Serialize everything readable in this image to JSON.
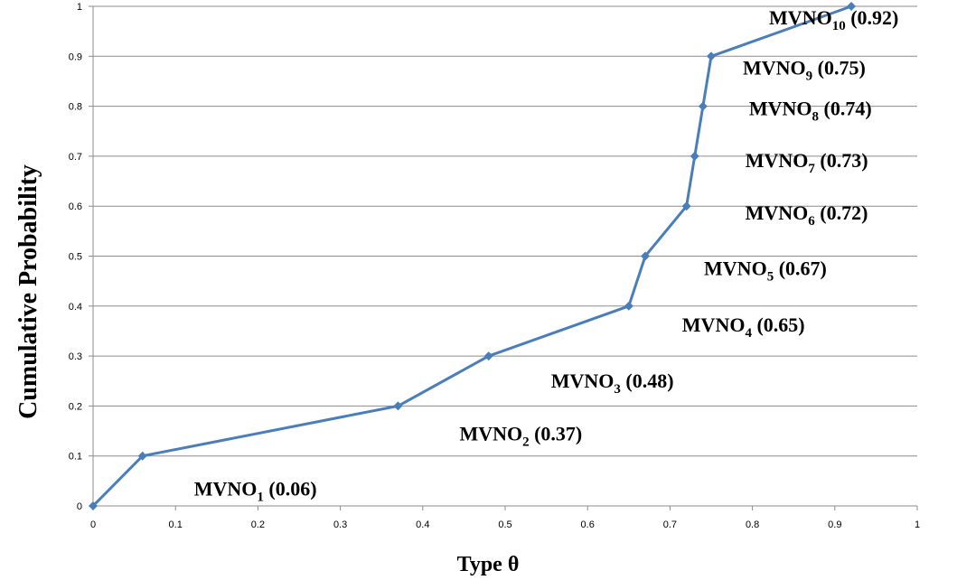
{
  "chart_data": {
    "type": "line",
    "title": "",
    "xlabel": "Type θ",
    "ylabel": "Cumulative Probability",
    "xlim": [
      0,
      1
    ],
    "ylim": [
      0,
      1
    ],
    "xticks": [
      "0",
      "0.1",
      "0.2",
      "0.3",
      "0.4",
      "0.5",
      "0.6",
      "0.7",
      "0.8",
      "0.9",
      "1"
    ],
    "yticks": [
      "0",
      "0.1",
      "0.2",
      "0.3",
      "0.4",
      "0.5",
      "0.6",
      "0.7",
      "0.8",
      "0.9",
      "1"
    ],
    "grid": "horizontal",
    "legend": "none",
    "line_color": "#4a7ebb",
    "series": [
      {
        "x": [
          0,
          0.06,
          0.37,
          0.48,
          0.65,
          0.67,
          0.72,
          0.73,
          0.74,
          0.75,
          0.92
        ],
        "y": [
          0,
          0.1,
          0.2,
          0.3,
          0.4,
          0.5,
          0.6,
          0.7,
          0.8,
          0.9,
          1.0
        ]
      }
    ],
    "annotations": [
      {
        "base": "MVNO",
        "sub": "1",
        "value": "(0.06)"
      },
      {
        "base": "MVNO",
        "sub": "2",
        "value": "(0.37)"
      },
      {
        "base": "MVNO",
        "sub": "3",
        "value": "(0.48)"
      },
      {
        "base": "MVNO",
        "sub": "4",
        "value": "(0.65)"
      },
      {
        "base": "MVNO",
        "sub": "5",
        "value": "(0.67)"
      },
      {
        "base": "MVNO",
        "sub": "6",
        "value": "(0.72)"
      },
      {
        "base": "MVNO",
        "sub": "7",
        "value": "(0.73)"
      },
      {
        "base": "MVNO",
        "sub": "8",
        "value": "(0.74)"
      },
      {
        "base": "MVNO",
        "sub": "9",
        "value": "(0.75)"
      },
      {
        "base": "MVNO",
        "sub": "10",
        "value": "(0.92)"
      }
    ]
  }
}
